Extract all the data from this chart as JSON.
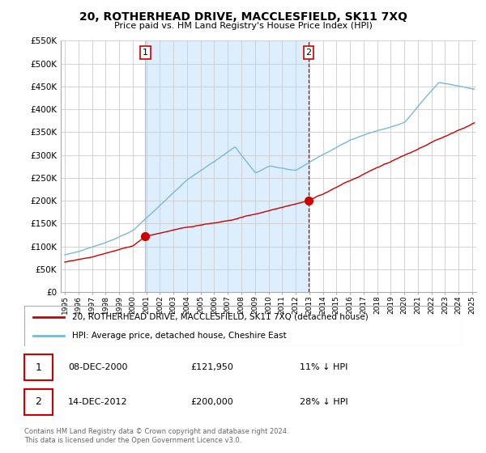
{
  "title": "20, ROTHERHEAD DRIVE, MACCLESFIELD, SK11 7XQ",
  "subtitle": "Price paid vs. HM Land Registry's House Price Index (HPI)",
  "ylim": [
    0,
    550000
  ],
  "yticks": [
    0,
    50000,
    100000,
    150000,
    200000,
    250000,
    300000,
    350000,
    400000,
    450000,
    500000,
    550000
  ],
  "xlim_start": 1994.7,
  "xlim_end": 2025.3,
  "sale1_year": 2000.92,
  "sale1_price": 121950,
  "sale2_year": 2012.95,
  "sale2_price": 200000,
  "legend_line1": "20, ROTHERHEAD DRIVE, MACCLESFIELD, SK11 7XQ (detached house)",
  "legend_line2": "HPI: Average price, detached house, Cheshire East",
  "annotation1_date": "08-DEC-2000",
  "annotation1_price": "£121,950",
  "annotation1_hpi": "11% ↓ HPI",
  "annotation2_date": "14-DEC-2012",
  "annotation2_price": "£200,000",
  "annotation2_hpi": "28% ↓ HPI",
  "footer": "Contains HM Land Registry data © Crown copyright and database right 2024.\nThis data is licensed under the Open Government Licence v3.0.",
  "hpi_color": "#7ab8d8",
  "price_color": "#cc0000",
  "shade_color": "#ddeeff",
  "grid_color": "#cccccc",
  "vline1_color": "#aaaaaa",
  "vline2_color": "#dd0000"
}
